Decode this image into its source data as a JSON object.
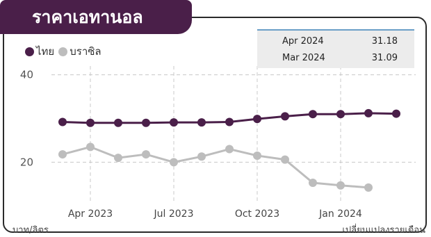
{
  "title": "ราคาเอทานอล",
  "info_box": [
    {
      "label": "Apr 2024",
      "value": "31.18"
    },
    {
      "label": "Mar 2024",
      "value": "31.09"
    }
  ],
  "unit_left": "บาท/ลิตร",
  "unit_right": "เปลี่ยนแปลงรายเดือน",
  "colors": {
    "thai": "#4a1f49",
    "brazil": "#bdbdbd",
    "tab": "#4a1f49",
    "info_border": "#6a9ec7"
  },
  "chart_data": {
    "type": "line",
    "title": "ราคาเอทานอล",
    "xlabel": "",
    "ylabel": "บาท/ลิตร",
    "x": [
      "Mar 2023",
      "Apr 2023",
      "May 2023",
      "Jun 2023",
      "Jul 2023",
      "Aug 2023",
      "Sep 2023",
      "Oct 2023",
      "Nov 2023",
      "Dec 2023",
      "Jan 2024",
      "Feb 2024",
      "Mar 2024"
    ],
    "x_ticks": [
      "Apr 2023",
      "Jul 2023",
      "Oct 2023",
      "Jan 2024"
    ],
    "y_ticks": [
      20,
      40
    ],
    "ylim": [
      11,
      42
    ],
    "grid": true,
    "legend_position": "top-left",
    "series": [
      {
        "name": "ไทย",
        "color": "#4a1f49",
        "values": [
          29.2,
          29.0,
          29.0,
          29.0,
          29.1,
          29.1,
          29.2,
          29.9,
          30.5,
          31.0,
          31.0,
          31.2,
          31.1
        ]
      },
      {
        "name": "บราซิล",
        "color": "#bdbdbd",
        "values": [
          21.8,
          23.5,
          21.0,
          21.8,
          20.0,
          21.3,
          23.0,
          21.5,
          20.6,
          15.3,
          14.7,
          14.2,
          null
        ]
      }
    ]
  }
}
